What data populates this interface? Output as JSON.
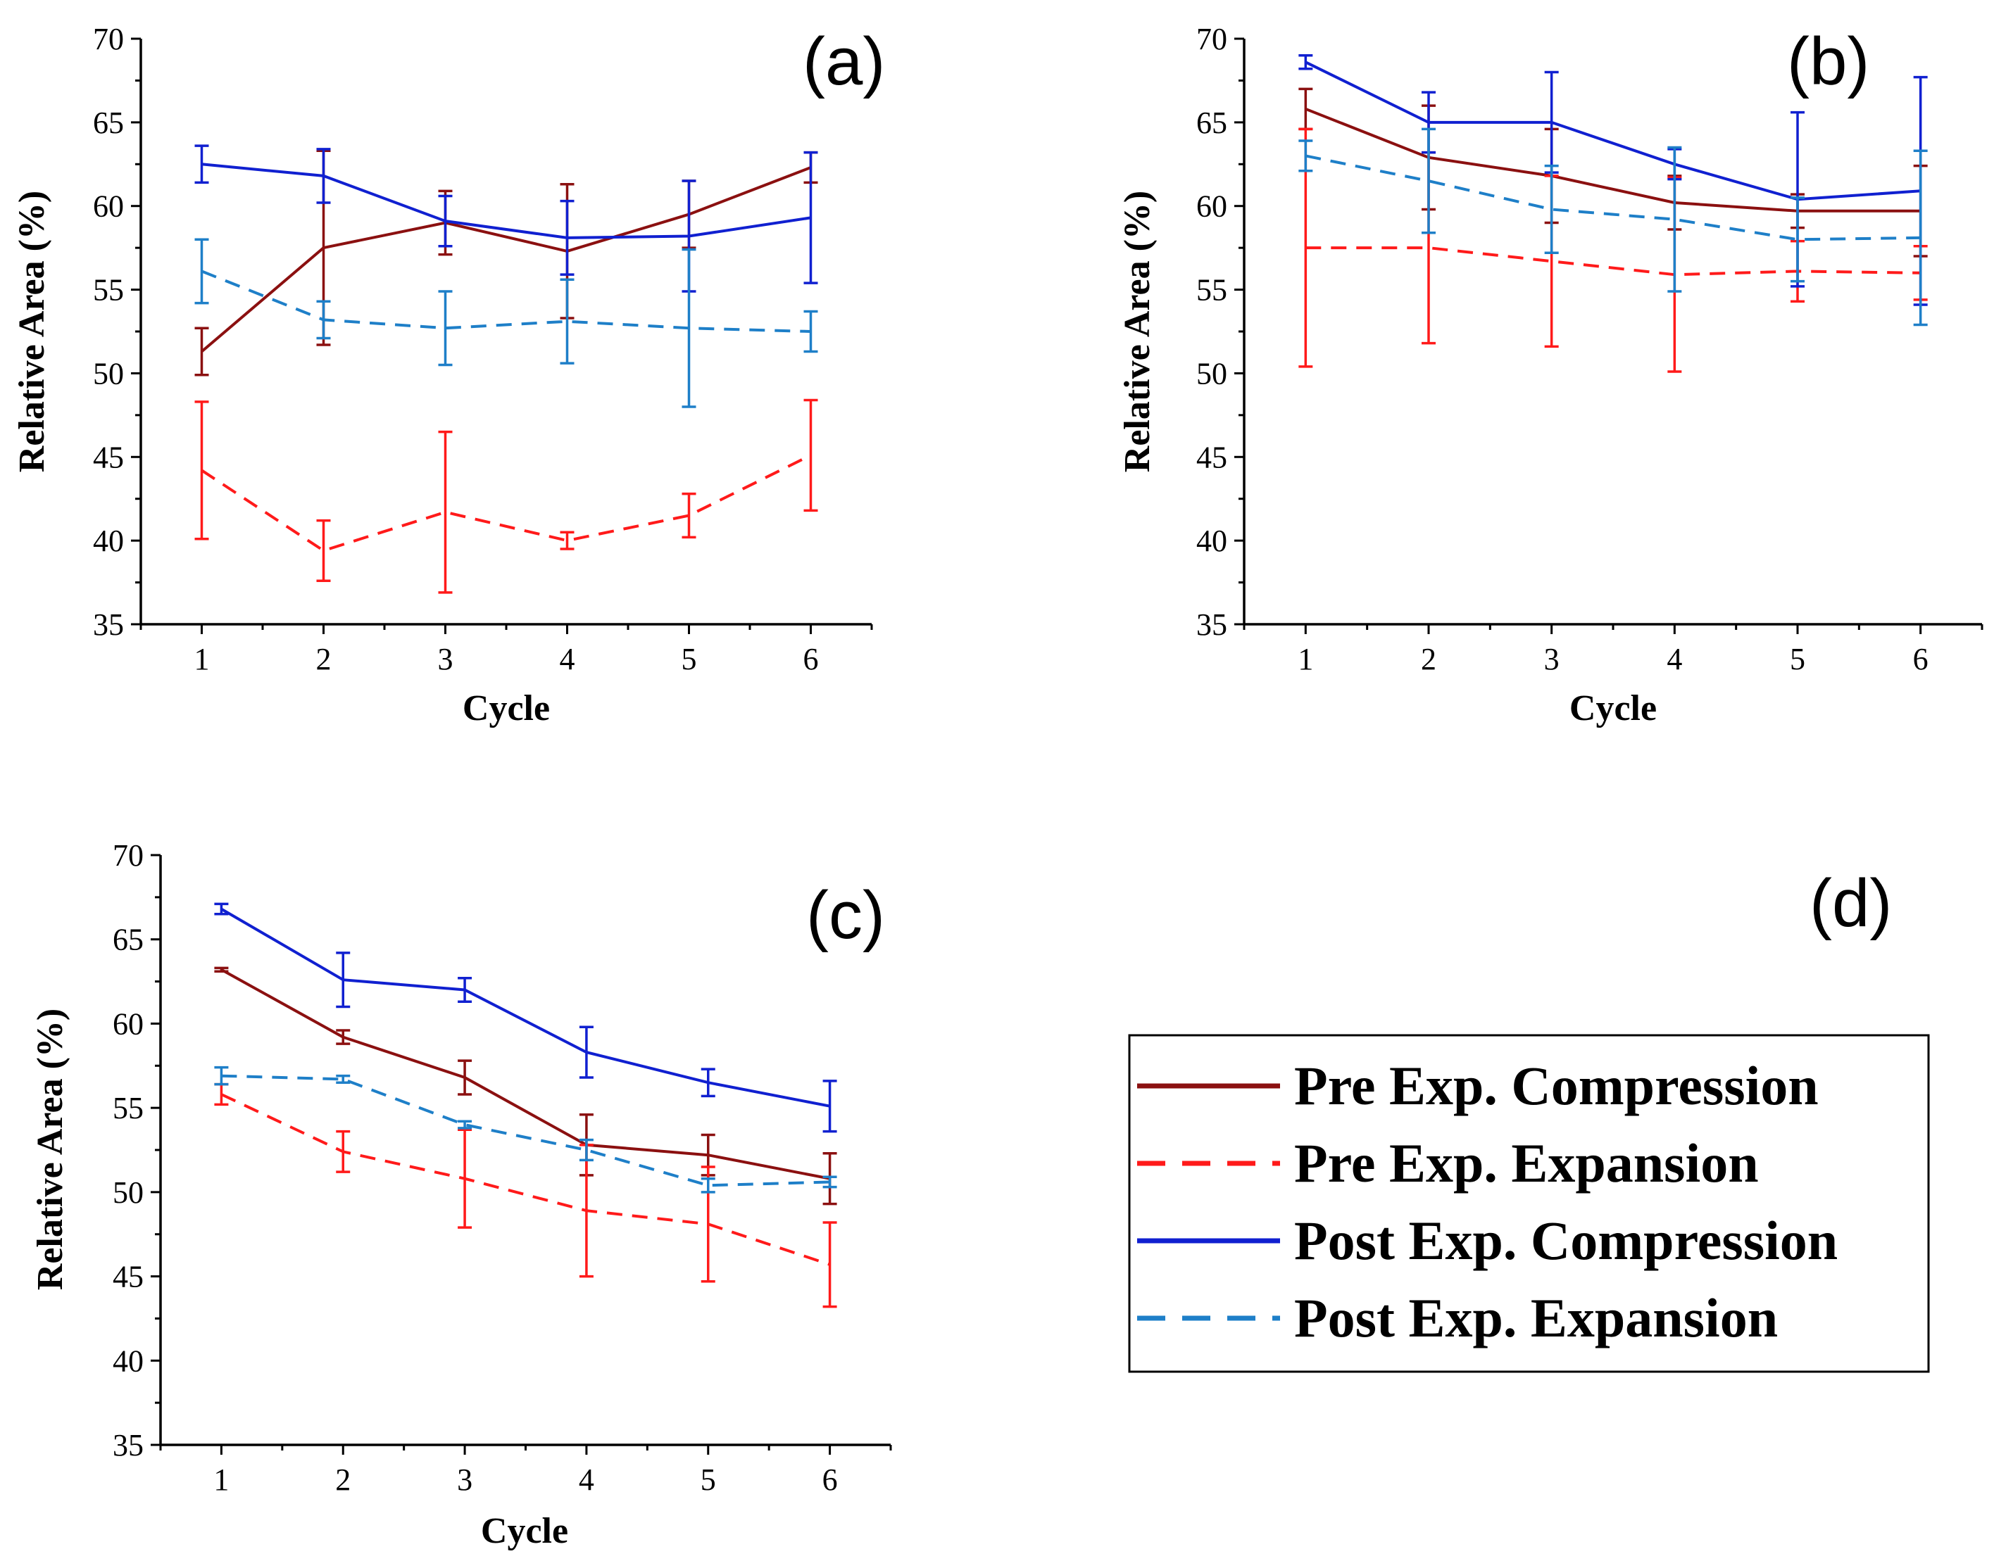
{
  "colors": {
    "pre_compression": "#8B1010",
    "pre_expansion": "#FF1A1A",
    "post_compression": "#1020D0",
    "post_expansion": "#1E7FC8"
  },
  "legend": [
    {
      "name": "Pre Exp. Compression",
      "color": "#8B1010",
      "dash": "solid"
    },
    {
      "name": "Pre Exp. Expansion",
      "color": "#FF1A1A",
      "dash": "dashed"
    },
    {
      "name": "Post Exp. Compression",
      "color": "#1020D0",
      "dash": "solid"
    },
    {
      "name": "Post Exp. Expansion",
      "color": "#1E7FC8",
      "dash": "dashed"
    }
  ],
  "legend_panel_label": "(d)",
  "chart_data": [
    {
      "type": "line",
      "panel_label": "(a)",
      "xlabel": "Cycle",
      "ylabel": "Relative Area (%)",
      "x": [
        1,
        2,
        3,
        4,
        5,
        6
      ],
      "xlim": [
        0.5,
        6.5
      ],
      "ylim": [
        35,
        70
      ],
      "yticks": [
        35,
        40,
        45,
        50,
        55,
        60,
        65,
        70
      ],
      "series": [
        {
          "name": "Pre Exp. Compression",
          "key": "pre_compression",
          "dash": "solid",
          "values": [
            51.3,
            57.5,
            59.0,
            57.3,
            59.5,
            62.3
          ],
          "err": [
            1.4,
            5.8,
            1.9,
            4.0,
            2.0,
            0.9
          ]
        },
        {
          "name": "Pre Exp. Expansion",
          "key": "pre_expansion",
          "dash": "dashed",
          "values": [
            44.2,
            39.4,
            41.7,
            40.0,
            41.5,
            45.1
          ],
          "err": [
            4.1,
            1.8,
            4.8,
            0.5,
            1.3,
            3.3
          ]
        },
        {
          "name": "Post Exp. Compression",
          "key": "post_compression",
          "dash": "solid",
          "values": [
            62.5,
            61.8,
            59.1,
            58.1,
            58.2,
            59.3
          ],
          "err": [
            1.1,
            1.6,
            1.5,
            2.2,
            3.3,
            3.9
          ]
        },
        {
          "name": "Post Exp. Expansion",
          "key": "post_expansion",
          "dash": "dashed",
          "values": [
            56.1,
            53.2,
            52.7,
            53.1,
            52.7,
            52.5
          ],
          "err": [
            1.9,
            1.1,
            2.2,
            2.5,
            4.7,
            1.2
          ]
        }
      ]
    },
    {
      "type": "line",
      "panel_label": "(b)",
      "xlabel": "Cycle",
      "ylabel": "Relative Area (%)",
      "x": [
        1,
        2,
        3,
        4,
        5,
        6
      ],
      "xlim": [
        0.5,
        6.5
      ],
      "ylim": [
        35,
        70
      ],
      "yticks": [
        35,
        40,
        45,
        50,
        55,
        60,
        65,
        70
      ],
      "series": [
        {
          "name": "Pre Exp. Compression",
          "key": "pre_compression",
          "dash": "solid",
          "values": [
            65.8,
            62.9,
            61.8,
            60.2,
            59.7,
            59.7
          ],
          "err": [
            1.2,
            3.1,
            2.8,
            1.6,
            1.0,
            2.7
          ]
        },
        {
          "name": "Pre Exp. Expansion",
          "key": "pre_expansion",
          "dash": "dashed",
          "values": [
            57.5,
            57.5,
            56.7,
            55.9,
            56.1,
            56.0
          ],
          "err": [
            7.1,
            5.7,
            5.1,
            5.8,
            1.8,
            1.6
          ]
        },
        {
          "name": "Post Exp. Compression",
          "key": "post_compression",
          "dash": "solid",
          "values": [
            68.6,
            65.0,
            65.0,
            62.5,
            60.4,
            60.9
          ],
          "err": [
            0.4,
            1.8,
            3.0,
            0.9,
            5.2,
            6.8
          ]
        },
        {
          "name": "Post Exp. Expansion",
          "key": "post_expansion",
          "dash": "dashed",
          "values": [
            63.0,
            61.5,
            59.8,
            59.2,
            58.0,
            58.1
          ],
          "err": [
            0.9,
            3.1,
            2.6,
            4.3,
            2.5,
            5.2
          ]
        }
      ]
    },
    {
      "type": "line",
      "panel_label": "(c)",
      "xlabel": "Cycle",
      "ylabel": "Relative Area (%)",
      "x": [
        1,
        2,
        3,
        4,
        5,
        6
      ],
      "xlim": [
        0.5,
        6.5
      ],
      "ylim": [
        35,
        70
      ],
      "yticks": [
        35,
        40,
        45,
        50,
        55,
        60,
        65,
        70
      ],
      "series": [
        {
          "name": "Pre Exp. Compression",
          "key": "pre_compression",
          "dash": "solid",
          "values": [
            63.2,
            59.2,
            56.8,
            52.8,
            52.2,
            50.8
          ],
          "err": [
            0.1,
            0.4,
            1.0,
            1.8,
            1.2,
            1.5
          ]
        },
        {
          "name": "Pre Exp. Expansion",
          "key": "pre_expansion",
          "dash": "dashed",
          "values": [
            55.8,
            52.4,
            50.8,
            48.9,
            48.1,
            45.7
          ],
          "err": [
            0.6,
            1.2,
            2.9,
            3.9,
            3.4,
            2.5
          ]
        },
        {
          "name": "Post Exp. Compression",
          "key": "post_compression",
          "dash": "solid",
          "values": [
            66.8,
            62.6,
            62.0,
            58.3,
            56.5,
            55.1
          ],
          "err": [
            0.3,
            1.6,
            0.7,
            1.5,
            0.8,
            1.5
          ]
        },
        {
          "name": "Post Exp. Expansion",
          "key": "post_expansion",
          "dash": "dashed",
          "values": [
            56.9,
            56.7,
            54.0,
            52.5,
            50.4,
            50.6
          ],
          "err": [
            0.5,
            0.2,
            0.2,
            0.6,
            0.4,
            0.3
          ]
        }
      ]
    }
  ]
}
